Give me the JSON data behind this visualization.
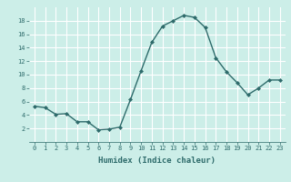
{
  "x": [
    0,
    1,
    2,
    3,
    4,
    5,
    6,
    7,
    8,
    9,
    10,
    11,
    12,
    13,
    14,
    15,
    16,
    17,
    18,
    19,
    20,
    21,
    22,
    23
  ],
  "y": [
    5.3,
    5.1,
    4.1,
    4.2,
    3.0,
    3.0,
    1.8,
    1.9,
    2.2,
    6.3,
    10.6,
    14.8,
    17.2,
    18.0,
    18.8,
    18.5,
    17.0,
    12.5,
    10.4,
    8.8,
    7.0,
    8.0,
    9.2,
    9.2
  ],
  "line_color": "#2e6b6b",
  "marker": "D",
  "marker_size": 2.0,
  "line_width": 1.0,
  "xlabel": "Humidex (Indice chaleur)",
  "ylim": [
    0,
    20
  ],
  "xlim": [
    -0.5,
    23.5
  ],
  "yticks": [
    2,
    4,
    6,
    8,
    10,
    12,
    14,
    16,
    18
  ],
  "xticks": [
    0,
    1,
    2,
    3,
    4,
    5,
    6,
    7,
    8,
    9,
    10,
    11,
    12,
    13,
    14,
    15,
    16,
    17,
    18,
    19,
    20,
    21,
    22,
    23
  ],
  "bg_color": "#cceee8",
  "grid_color": "#ffffff",
  "tick_color": "#2e6b6b",
  "xlabel_fontsize": 6.5,
  "tick_fontsize": 5.0
}
